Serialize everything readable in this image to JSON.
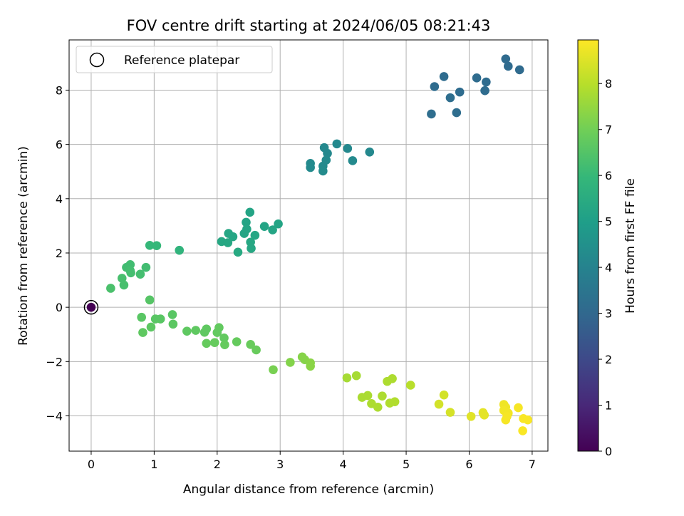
{
  "chart_data": {
    "type": "scatter",
    "title": "FOV centre drift starting at 2024/06/05 08:21:43",
    "xlabel": "Angular distance from reference (arcmin)",
    "ylabel": "Rotation from reference (arcmin)",
    "xlim": [
      -0.35,
      7.25
    ],
    "ylim": [
      -5.3,
      9.85
    ],
    "xticks": [
      0,
      1,
      2,
      3,
      4,
      5,
      6,
      7
    ],
    "yticks": [
      -4,
      -2,
      0,
      2,
      4,
      6,
      8
    ],
    "grid": true,
    "legend": {
      "position": "top-left",
      "entries": [
        "Reference platepar"
      ]
    },
    "reference_point": {
      "x": 0,
      "y": 0,
      "hours": 0
    },
    "colorbar": {
      "label": "Hours from first FF file",
      "min": 0,
      "max": 8.95,
      "ticks": [
        0,
        1,
        2,
        3,
        4,
        5,
        6,
        7,
        8
      ],
      "colormap": "viridis",
      "colors": [
        "#440154",
        "#482878",
        "#3e4989",
        "#31688e",
        "#26828e",
        "#1f9e89",
        "#35b779",
        "#6ece58",
        "#b5de2b",
        "#fde725"
      ]
    },
    "points": [
      {
        "x": 6.58,
        "y": 9.15,
        "h": 3.1
      },
      {
        "x": 6.62,
        "y": 8.88,
        "h": 3.1
      },
      {
        "x": 6.8,
        "y": 8.75,
        "h": 3.1
      },
      {
        "x": 5.6,
        "y": 8.5,
        "h": 3.15
      },
      {
        "x": 5.45,
        "y": 8.13,
        "h": 3.15
      },
      {
        "x": 6.12,
        "y": 8.45,
        "h": 3.15
      },
      {
        "x": 6.27,
        "y": 8.3,
        "h": 3.15
      },
      {
        "x": 5.85,
        "y": 7.93,
        "h": 3.15
      },
      {
        "x": 6.25,
        "y": 7.98,
        "h": 3.15
      },
      {
        "x": 5.7,
        "y": 7.72,
        "h": 3.2
      },
      {
        "x": 5.4,
        "y": 7.12,
        "h": 3.2
      },
      {
        "x": 5.8,
        "y": 7.17,
        "h": 3.2
      },
      {
        "x": 3.9,
        "y": 6.02,
        "h": 4.2
      },
      {
        "x": 3.7,
        "y": 5.88,
        "h": 4.2
      },
      {
        "x": 4.07,
        "y": 5.85,
        "h": 4.2
      },
      {
        "x": 4.42,
        "y": 5.72,
        "h": 4.2
      },
      {
        "x": 3.75,
        "y": 5.67,
        "h": 4.2
      },
      {
        "x": 3.73,
        "y": 5.42,
        "h": 4.25
      },
      {
        "x": 4.15,
        "y": 5.4,
        "h": 4.25
      },
      {
        "x": 3.48,
        "y": 5.3,
        "h": 4.25
      },
      {
        "x": 3.48,
        "y": 5.15,
        "h": 4.25
      },
      {
        "x": 3.68,
        "y": 5.2,
        "h": 4.25
      },
      {
        "x": 3.68,
        "y": 5.02,
        "h": 4.3
      },
      {
        "x": 2.52,
        "y": 3.5,
        "h": 5.2
      },
      {
        "x": 2.46,
        "y": 3.13,
        "h": 5.2
      },
      {
        "x": 2.97,
        "y": 3.07,
        "h": 5.2
      },
      {
        "x": 2.75,
        "y": 2.98,
        "h": 5.2
      },
      {
        "x": 2.88,
        "y": 2.85,
        "h": 5.25
      },
      {
        "x": 2.47,
        "y": 2.88,
        "h": 5.25
      },
      {
        "x": 2.43,
        "y": 2.72,
        "h": 5.25
      },
      {
        "x": 2.18,
        "y": 2.72,
        "h": 5.3
      },
      {
        "x": 2.25,
        "y": 2.6,
        "h": 5.3
      },
      {
        "x": 2.6,
        "y": 2.65,
        "h": 5.3
      },
      {
        "x": 2.07,
        "y": 2.42,
        "h": 5.35
      },
      {
        "x": 2.17,
        "y": 2.38,
        "h": 5.35
      },
      {
        "x": 2.53,
        "y": 2.4,
        "h": 5.35
      },
      {
        "x": 2.54,
        "y": 2.17,
        "h": 5.35
      },
      {
        "x": 2.33,
        "y": 2.03,
        "h": 5.4
      },
      {
        "x": 1.4,
        "y": 2.1,
        "h": 5.8
      },
      {
        "x": 0.93,
        "y": 2.28,
        "h": 5.95
      },
      {
        "x": 1.04,
        "y": 2.27,
        "h": 5.95
      },
      {
        "x": 0.62,
        "y": 1.57,
        "h": 6.2
      },
      {
        "x": 0.56,
        "y": 1.47,
        "h": 6.2
      },
      {
        "x": 0.87,
        "y": 1.47,
        "h": 6.2
      },
      {
        "x": 0.62,
        "y": 1.35,
        "h": 6.25
      },
      {
        "x": 0.63,
        "y": 1.27,
        "h": 6.25
      },
      {
        "x": 0.78,
        "y": 1.22,
        "h": 6.25
      },
      {
        "x": 0.49,
        "y": 1.07,
        "h": 6.3
      },
      {
        "x": 0.52,
        "y": 0.82,
        "h": 6.3
      },
      {
        "x": 0.31,
        "y": 0.7,
        "h": 6.35
      },
      {
        "x": 0.93,
        "y": 0.27,
        "h": 6.55
      },
      {
        "x": 0.8,
        "y": -0.37,
        "h": 6.6
      },
      {
        "x": 1.02,
        "y": -0.43,
        "h": 6.6
      },
      {
        "x": 1.1,
        "y": -0.43,
        "h": 6.6
      },
      {
        "x": 1.29,
        "y": -0.27,
        "h": 6.6
      },
      {
        "x": 0.95,
        "y": -0.73,
        "h": 6.65
      },
      {
        "x": 1.3,
        "y": -0.62,
        "h": 6.65
      },
      {
        "x": 0.82,
        "y": -0.93,
        "h": 6.7
      },
      {
        "x": 1.52,
        "y": -0.88,
        "h": 6.7
      },
      {
        "x": 1.66,
        "y": -0.85,
        "h": 6.7
      },
      {
        "x": 1.8,
        "y": -0.92,
        "h": 6.7
      },
      {
        "x": 1.83,
        "y": -0.8,
        "h": 6.7
      },
      {
        "x": 2.03,
        "y": -0.75,
        "h": 6.75
      },
      {
        "x": 2.0,
        "y": -0.93,
        "h": 6.75
      },
      {
        "x": 2.11,
        "y": -1.13,
        "h": 6.75
      },
      {
        "x": 1.83,
        "y": -1.33,
        "h": 6.8
      },
      {
        "x": 1.96,
        "y": -1.3,
        "h": 6.8
      },
      {
        "x": 2.12,
        "y": -1.38,
        "h": 6.8
      },
      {
        "x": 2.31,
        "y": -1.27,
        "h": 6.8
      },
      {
        "x": 2.53,
        "y": -1.37,
        "h": 6.85
      },
      {
        "x": 2.62,
        "y": -1.57,
        "h": 6.85
      },
      {
        "x": 2.89,
        "y": -2.3,
        "h": 7.1
      },
      {
        "x": 3.16,
        "y": -2.03,
        "h": 7.25
      },
      {
        "x": 3.35,
        "y": -1.83,
        "h": 7.3
      },
      {
        "x": 3.39,
        "y": -1.93,
        "h": 7.3
      },
      {
        "x": 3.48,
        "y": -2.05,
        "h": 7.35
      },
      {
        "x": 3.48,
        "y": -2.17,
        "h": 7.35
      },
      {
        "x": 4.06,
        "y": -2.6,
        "h": 7.75
      },
      {
        "x": 4.21,
        "y": -2.52,
        "h": 7.75
      },
      {
        "x": 4.3,
        "y": -3.32,
        "h": 7.8
      },
      {
        "x": 4.39,
        "y": -3.25,
        "h": 7.8
      },
      {
        "x": 4.45,
        "y": -3.55,
        "h": 7.85
      },
      {
        "x": 4.55,
        "y": -3.68,
        "h": 7.85
      },
      {
        "x": 4.62,
        "y": -3.27,
        "h": 7.85
      },
      {
        "x": 4.7,
        "y": -2.73,
        "h": 7.85
      },
      {
        "x": 4.78,
        "y": -2.63,
        "h": 7.85
      },
      {
        "x": 4.74,
        "y": -3.53,
        "h": 7.9
      },
      {
        "x": 4.82,
        "y": -3.48,
        "h": 7.9
      },
      {
        "x": 5.07,
        "y": -2.87,
        "h": 8.0
      },
      {
        "x": 5.52,
        "y": -3.57,
        "h": 8.35
      },
      {
        "x": 5.6,
        "y": -3.23,
        "h": 8.35
      },
      {
        "x": 5.7,
        "y": -3.87,
        "h": 8.4
      },
      {
        "x": 6.03,
        "y": -4.02,
        "h": 8.55
      },
      {
        "x": 6.22,
        "y": -3.88,
        "h": 8.6
      },
      {
        "x": 6.24,
        "y": -3.97,
        "h": 8.6
      },
      {
        "x": 6.55,
        "y": -3.58,
        "h": 8.75
      },
      {
        "x": 6.58,
        "y": -3.68,
        "h": 8.75
      },
      {
        "x": 6.55,
        "y": -3.8,
        "h": 8.8
      },
      {
        "x": 6.62,
        "y": -3.9,
        "h": 8.8
      },
      {
        "x": 6.6,
        "y": -4.02,
        "h": 8.85
      },
      {
        "x": 6.58,
        "y": -4.15,
        "h": 8.85
      },
      {
        "x": 6.78,
        "y": -3.7,
        "h": 8.85
      },
      {
        "x": 6.86,
        "y": -4.1,
        "h": 8.9
      },
      {
        "x": 6.93,
        "y": -4.15,
        "h": 8.9
      },
      {
        "x": 6.85,
        "y": -4.55,
        "h": 8.9
      }
    ]
  }
}
